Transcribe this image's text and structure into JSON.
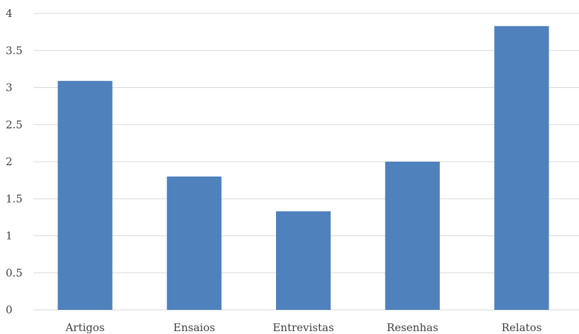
{
  "chart_data": {
    "type": "bar",
    "title": "",
    "xlabel": "",
    "ylabel": "",
    "categories": [
      "Artigos",
      "Ensaios",
      "Entrevistas",
      "Resenhas",
      "Relatos"
    ],
    "values": [
      3.09,
      1.8,
      1.33,
      2.0,
      3.83
    ],
    "ylim": [
      0,
      4
    ],
    "yticks": [
      "0",
      "0.5",
      "1",
      "1.5",
      "2",
      "2.5",
      "3",
      "3.5",
      "4"
    ],
    "grid": true,
    "legend": "none",
    "colors": {
      "bar": "#4f81bd",
      "grid": "#d9d9d9",
      "text": "#404040"
    }
  }
}
